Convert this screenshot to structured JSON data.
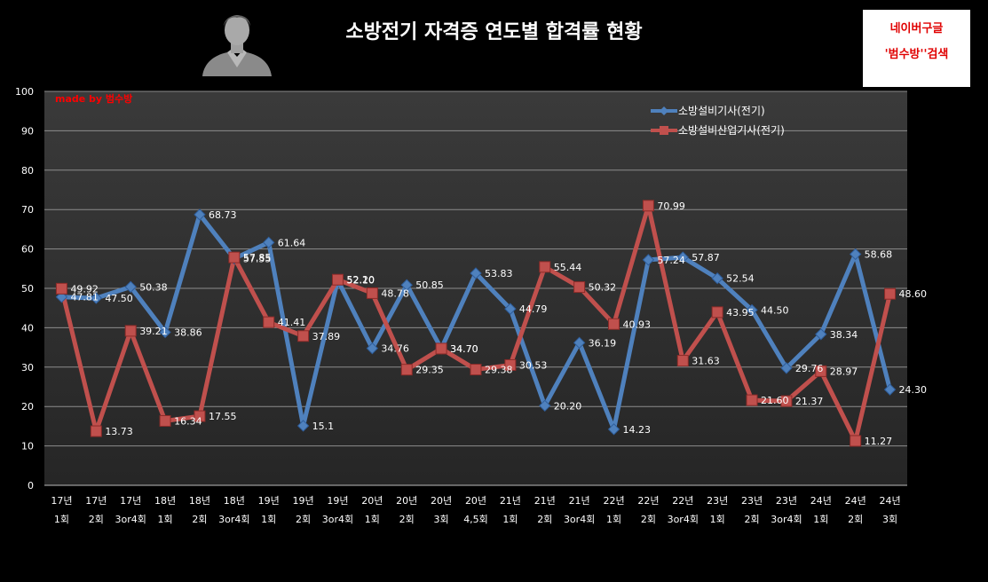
{
  "title": "소방전기 자격증 연도별 합격률 현황",
  "note": {
    "line1": "네이버구글",
    "line2": "'범수방''검색"
  },
  "made_by": "made by  범수방",
  "chart_data": {
    "type": "line",
    "title": "소방전기 자격증 연도별 합격률 현황",
    "ylim": [
      0,
      100
    ],
    "yticks": [
      0,
      10,
      20,
      30,
      40,
      50,
      60,
      70,
      80,
      90,
      100
    ],
    "grid": true,
    "legend_position": "top-right",
    "categories": [
      [
        "17년",
        "1회"
      ],
      [
        "17년",
        "2회"
      ],
      [
        "17년",
        "3or4회"
      ],
      [
        "18년",
        "1회"
      ],
      [
        "18년",
        "2회"
      ],
      [
        "18년",
        "3or4회"
      ],
      [
        "19년",
        "1회"
      ],
      [
        "19년",
        "2회"
      ],
      [
        "19년",
        "3or4회"
      ],
      [
        "20년",
        "1회"
      ],
      [
        "20년",
        "2회"
      ],
      [
        "20년",
        "3회"
      ],
      [
        "20년",
        "4,5회"
      ],
      [
        "21년",
        "1회"
      ],
      [
        "21년",
        "2회"
      ],
      [
        "21년",
        "3or4회"
      ],
      [
        "22년",
        "1회"
      ],
      [
        "22년",
        "2회"
      ],
      [
        "22년",
        "3or4회"
      ],
      [
        "23년",
        "1회"
      ],
      [
        "23년",
        "2회"
      ],
      [
        "23년",
        "3or4회"
      ],
      [
        "24년",
        "1회"
      ],
      [
        "24년",
        "2회"
      ],
      [
        "24년",
        "3회"
      ]
    ],
    "series": [
      {
        "name": "소방설비기사(전기)",
        "color": "#4f81bd",
        "values": [
          47.81,
          47.5,
          50.38,
          38.86,
          68.73,
          57.55,
          61.64,
          15.1,
          52.1,
          34.76,
          50.85,
          34.7,
          53.83,
          44.79,
          20.2,
          36.19,
          14.23,
          57.24,
          57.87,
          52.54,
          44.5,
          29.76,
          38.34,
          58.68,
          24.3
        ],
        "labels": [
          "47.81",
          "47.50",
          "50.38",
          "38.86",
          "68.73",
          "57.55",
          "61.64",
          "15.1",
          "52.10",
          "34.76",
          "50.85",
          "34.70",
          "53.83",
          "44.79",
          "20.20",
          "36.19",
          "14.23",
          "57.24",
          "57.87",
          "52.54",
          "44.50",
          "29.76",
          "38.34",
          "58.68",
          "24.30"
        ]
      },
      {
        "name": "소방설비산업기사(전기)",
        "color": "#c0504d",
        "values": [
          49.92,
          13.73,
          39.21,
          16.34,
          17.55,
          57.85,
          41.41,
          37.89,
          52.2,
          48.78,
          29.35,
          34.7,
          29.38,
          30.53,
          55.44,
          50.32,
          40.93,
          70.99,
          31.63,
          43.95,
          21.6,
          21.37,
          28.97,
          11.27,
          48.6
        ],
        "labels": [
          "49.92",
          "13.73",
          "39.21",
          "16.34",
          "17.55",
          "57.85",
          "41.41",
          "37.89",
          "52.20",
          "48.78",
          "29.35",
          "34.70",
          "29.38",
          "30.53",
          "55.44",
          "50.32",
          "40.93",
          "70.99",
          "31.63",
          "43.95",
          "21.60",
          "21.37",
          "28.97",
          "11.27",
          "48.60"
        ]
      }
    ]
  }
}
